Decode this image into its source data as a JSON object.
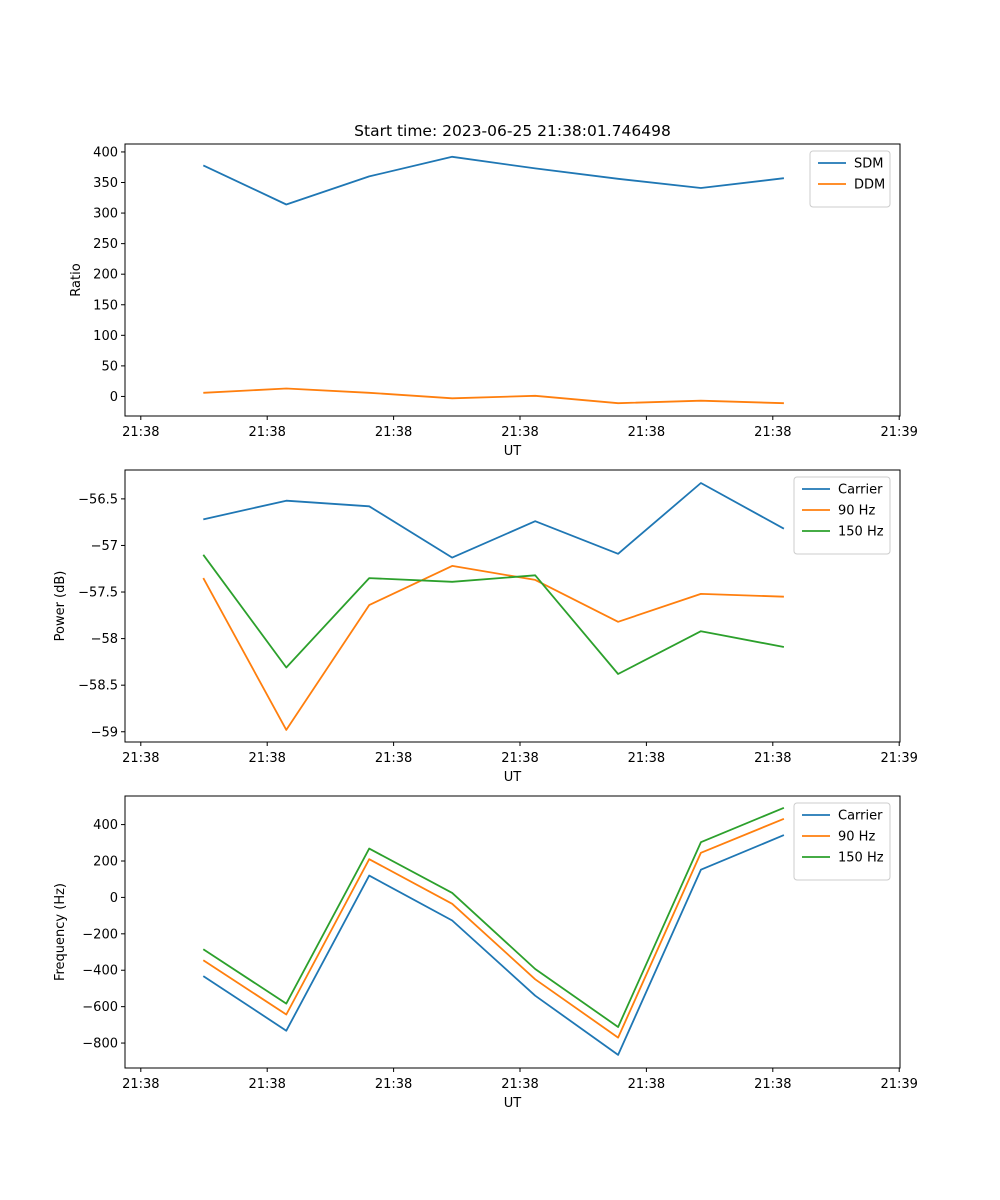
{
  "chart_data": [
    {
      "type": "line",
      "title": "Start time: 2023-06-25 21:38:01.746498",
      "xlabel": "UT",
      "ylabel": "Ratio",
      "x_tick_labels": [
        "21:38",
        "21:38",
        "21:38",
        "21:38",
        "21:38",
        "21:38",
        "21:38"
      ],
      "x_end_tick_label": "21:39",
      "ylim": [
        -32,
        413
      ],
      "y_ticks": [
        0,
        50,
        100,
        150,
        200,
        250,
        300,
        350,
        400
      ],
      "grid": false,
      "legend": "top-right",
      "series": [
        {
          "name": "SDM",
          "color": "#1f77b4",
          "values": [
            378,
            314,
            360,
            392,
            373,
            356,
            341,
            357
          ]
        },
        {
          "name": "DDM",
          "color": "#ff7f0e",
          "values": [
            6,
            13,
            6,
            -3,
            1,
            -11,
            -7,
            -11
          ]
        }
      ]
    },
    {
      "type": "line",
      "title": "",
      "xlabel": "UT",
      "ylabel": "Power (dB)",
      "x_tick_labels": [
        "21:38",
        "21:38",
        "21:38",
        "21:38",
        "21:38",
        "21:38",
        "21:38"
      ],
      "x_end_tick_label": "21:39",
      "ylim": [
        -59.11,
        -56.19
      ],
      "y_ticks": [
        -59.0,
        -58.5,
        -58.0,
        -57.5,
        -57.0,
        -56.5
      ],
      "grid": false,
      "legend": "top-right",
      "series": [
        {
          "name": "Carrier",
          "color": "#1f77b4",
          "values": [
            -56.72,
            -56.52,
            -56.58,
            -57.13,
            -56.74,
            -57.09,
            -56.33,
            -56.82
          ]
        },
        {
          "name": "90 Hz",
          "color": "#ff7f0e",
          "values": [
            -57.35,
            -58.98,
            -57.64,
            -57.22,
            -57.37,
            -57.82,
            -57.52,
            -57.55
          ]
        },
        {
          "name": "150 Hz",
          "color": "#2ca02c",
          "values": [
            -57.1,
            -58.31,
            -57.35,
            -57.39,
            -57.32,
            -58.38,
            -57.92,
            -58.09
          ]
        }
      ]
    },
    {
      "type": "line",
      "title": "",
      "xlabel": "UT",
      "ylabel": "Frequency (Hz)",
      "x_tick_labels": [
        "21:38",
        "21:38",
        "21:38",
        "21:38",
        "21:38",
        "21:38",
        "21:38"
      ],
      "x_end_tick_label": "21:39",
      "ylim": [
        -937,
        557
      ],
      "y_ticks": [
        -800,
        -600,
        -400,
        -200,
        0,
        200,
        400
      ],
      "grid": false,
      "legend": "top-right",
      "series": [
        {
          "name": "Carrier",
          "color": "#1f77b4",
          "values": [
            -432,
            -732,
            120,
            -127,
            -540,
            -865,
            152,
            342
          ]
        },
        {
          "name": "90 Hz",
          "color": "#ff7f0e",
          "values": [
            -345,
            -643,
            210,
            -35,
            -450,
            -770,
            245,
            432
          ]
        },
        {
          "name": "150 Hz",
          "color": "#2ca02c",
          "values": [
            -285,
            -583,
            268,
            25,
            -393,
            -712,
            303,
            492
          ]
        }
      ]
    }
  ]
}
